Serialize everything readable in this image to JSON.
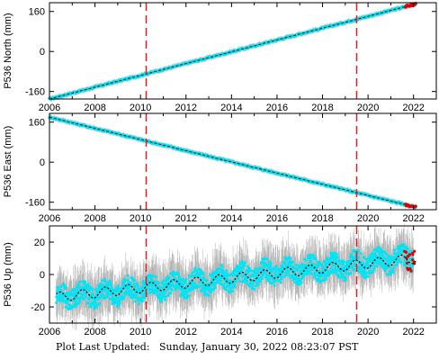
{
  "footer": {
    "label": "Plot Last Updated:",
    "timestamp": "Sunday, January 30, 2022 08:23:07 PST"
  },
  "style": {
    "data_color": "#00e5f5",
    "error_color": "#b4b4b4",
    "model_color": "#000000",
    "outlier_color": "#dd0000",
    "event_line_color": "#e02020"
  },
  "chart_data": [
    {
      "type": "scatter",
      "ylabel": "P536 North (mm)",
      "xlim": [
        2006.0,
        2023.0
      ],
      "ylim": [
        -190,
        195
      ],
      "x_ticks": [
        2006,
        2008,
        2010,
        2012,
        2014,
        2016,
        2018,
        2020,
        2022
      ],
      "y_ticks": [
        -160,
        0,
        160
      ],
      "x_tick_labels_shown": true,
      "series": [
        {
          "role": "daily_positions",
          "x": [
            2006.0,
            2022.1
          ],
          "y": [
            -190,
            190
          ]
        },
        {
          "role": "model_fit",
          "x": [
            2006.0,
            2022.1
          ],
          "y": [
            -190,
            190
          ]
        }
      ],
      "event_lines": [
        2010.25,
        2019.5
      ]
    },
    {
      "type": "scatter",
      "ylabel": "P536 East (mm)",
      "xlim": [
        2006.0,
        2023.0
      ],
      "ylim": [
        -190,
        195
      ],
      "x_ticks": [
        2006,
        2008,
        2010,
        2012,
        2014,
        2016,
        2018,
        2020,
        2022
      ],
      "y_ticks": [
        -160,
        0,
        160
      ],
      "x_tick_labels_shown": true,
      "series": [
        {
          "role": "daily_positions",
          "x": [
            2006.0,
            2022.1
          ],
          "y": [
            180,
            -180
          ]
        },
        {
          "role": "model_fit",
          "x": [
            2006.0,
            2022.1
          ],
          "y": [
            180,
            -180
          ]
        }
      ],
      "event_lines": [
        2010.25,
        2019.5
      ]
    },
    {
      "type": "scatter",
      "ylabel": "P536 Up (mm)",
      "xlim": [
        2006.0,
        2023.0
      ],
      "ylim": [
        -30,
        30
      ],
      "x_ticks": [
        2006,
        2008,
        2010,
        2012,
        2014,
        2016,
        2018,
        2020,
        2022
      ],
      "y_ticks": [
        -20,
        0,
        20
      ],
      "x_tick_labels_shown": true,
      "series": [
        {
          "role": "daily_positions_band",
          "x": [
            2006.3,
            2008,
            2010,
            2012,
            2014,
            2016,
            2018,
            2020,
            2022
          ],
          "y_center": [
            -14,
            -12,
            -9,
            -6,
            -2,
            2,
            4,
            7,
            11
          ],
          "spread": 8,
          "error_spread": 14
        },
        {
          "role": "model_fit",
          "x_start": 2006.3,
          "x_end": 2022.1,
          "trend_start": -14,
          "trend_end": 10,
          "annual_amplitude": 3
        }
      ],
      "event_lines": [
        2010.25,
        2019.5
      ]
    }
  ]
}
